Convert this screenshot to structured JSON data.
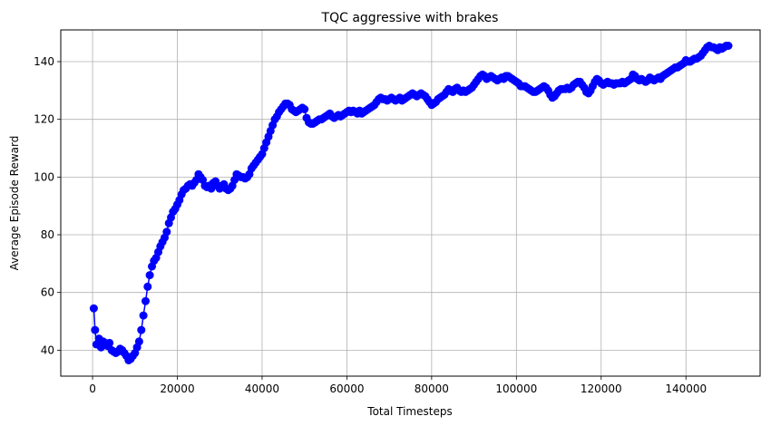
{
  "chart_data": {
    "type": "line",
    "title": "TQC aggressive with brakes",
    "xlabel": "Total Timesteps",
    "ylabel": "Average Episode Reward",
    "xlim": [
      -7500,
      157500
    ],
    "ylim": [
      31,
      151
    ],
    "xticks": [
      0,
      20000,
      40000,
      60000,
      80000,
      100000,
      120000,
      140000
    ],
    "yticks": [
      40,
      60,
      80,
      100,
      120,
      140
    ],
    "grid": true,
    "line_color": "#0000ff",
    "marker": "circle",
    "series": [
      {
        "name": "",
        "points": [
          [
            300,
            54.5
          ],
          [
            600,
            47
          ],
          [
            900,
            42
          ],
          [
            1500,
            44
          ],
          [
            2000,
            41
          ],
          [
            2500,
            43
          ],
          [
            3000,
            42.5
          ],
          [
            3500,
            41.5
          ],
          [
            4000,
            42.5
          ],
          [
            4500,
            40
          ],
          [
            5000,
            39.5
          ],
          [
            5500,
            39
          ],
          [
            6000,
            39.5
          ],
          [
            6500,
            40.5
          ],
          [
            7000,
            40
          ],
          [
            7500,
            39
          ],
          [
            8000,
            38
          ],
          [
            8500,
            36.5
          ],
          [
            9000,
            37
          ],
          [
            9500,
            38
          ],
          [
            10000,
            39
          ],
          [
            10500,
            41
          ],
          [
            11000,
            43
          ],
          [
            11500,
            47
          ],
          [
            12000,
            52
          ],
          [
            12500,
            57
          ],
          [
            13000,
            62
          ],
          [
            13500,
            66
          ],
          [
            14000,
            69
          ],
          [
            14500,
            71
          ],
          [
            15000,
            72
          ],
          [
            15500,
            74
          ],
          [
            16000,
            76
          ],
          [
            16500,
            77.5
          ],
          [
            17000,
            79
          ],
          [
            17500,
            81
          ],
          [
            18000,
            84
          ],
          [
            18500,
            86
          ],
          [
            19000,
            88
          ],
          [
            19500,
            89
          ],
          [
            20000,
            90.5
          ],
          [
            20500,
            92
          ],
          [
            21000,
            94
          ],
          [
            21500,
            95.5
          ],
          [
            22000,
            96
          ],
          [
            22500,
            97
          ],
          [
            23000,
            97.5
          ],
          [
            23500,
            97
          ],
          [
            24000,
            98
          ],
          [
            24500,
            99
          ],
          [
            25000,
            101
          ],
          [
            25500,
            100
          ],
          [
            26000,
            99
          ],
          [
            26500,
            97
          ],
          [
            27000,
            96.5
          ],
          [
            27500,
            97
          ],
          [
            28000,
            96
          ],
          [
            28500,
            98
          ],
          [
            29000,
            98.5
          ],
          [
            29500,
            97
          ],
          [
            30000,
            96
          ],
          [
            30500,
            97
          ],
          [
            31000,
            97.5
          ],
          [
            31500,
            96
          ],
          [
            32000,
            95.5
          ],
          [
            32500,
            96
          ],
          [
            33000,
            97
          ],
          [
            33500,
            99
          ],
          [
            34000,
            101
          ],
          [
            34500,
            100.5
          ],
          [
            35000,
            100
          ],
          [
            35500,
            100
          ],
          [
            36000,
            99.5
          ],
          [
            36500,
            100
          ],
          [
            37000,
            101
          ],
          [
            37500,
            103
          ],
          [
            38000,
            104
          ],
          [
            38500,
            105
          ],
          [
            39000,
            106
          ],
          [
            39500,
            107
          ],
          [
            40000,
            108
          ],
          [
            40500,
            110
          ],
          [
            41000,
            112
          ],
          [
            41500,
            114
          ],
          [
            42000,
            116
          ],
          [
            42500,
            118
          ],
          [
            43000,
            120
          ],
          [
            43500,
            121
          ],
          [
            44000,
            122.5
          ],
          [
            44500,
            123.5
          ],
          [
            45000,
            124.5
          ],
          [
            45500,
            125.5
          ],
          [
            46000,
            125.5
          ],
          [
            46500,
            125
          ],
          [
            47000,
            123.5
          ],
          [
            47500,
            123
          ],
          [
            48000,
            122.5
          ],
          [
            48500,
            123
          ],
          [
            49000,
            123.5
          ],
          [
            49500,
            124
          ],
          [
            50000,
            123.5
          ],
          [
            50500,
            120.5
          ],
          [
            51000,
            119
          ],
          [
            51500,
            118.5
          ],
          [
            52000,
            118.5
          ],
          [
            52500,
            119
          ],
          [
            53000,
            119.5
          ],
          [
            53500,
            120
          ],
          [
            54000,
            120
          ],
          [
            54500,
            120.5
          ],
          [
            55000,
            121
          ],
          [
            55500,
            121.5
          ],
          [
            56000,
            122
          ],
          [
            56500,
            121
          ],
          [
            57000,
            120.5
          ],
          [
            57500,
            121
          ],
          [
            58000,
            121.5
          ],
          [
            58500,
            121
          ],
          [
            59000,
            121.5
          ],
          [
            59500,
            122
          ],
          [
            60000,
            122.5
          ],
          [
            60500,
            123
          ],
          [
            61000,
            122.5
          ],
          [
            61500,
            123
          ],
          [
            62000,
            122.5
          ],
          [
            62500,
            122
          ],
          [
            63000,
            123
          ],
          [
            63500,
            122
          ],
          [
            64000,
            122.5
          ],
          [
            64500,
            123
          ],
          [
            65000,
            123.5
          ],
          [
            65500,
            124
          ],
          [
            66000,
            124.5
          ],
          [
            66500,
            125
          ],
          [
            67000,
            126
          ],
          [
            67500,
            127
          ],
          [
            68000,
            127.5
          ],
          [
            68500,
            127
          ],
          [
            69000,
            127
          ],
          [
            69500,
            126.5
          ],
          [
            70000,
            127
          ],
          [
            70500,
            127.5
          ],
          [
            71000,
            127
          ],
          [
            71500,
            126.5
          ],
          [
            72000,
            127
          ],
          [
            72500,
            127.5
          ],
          [
            73000,
            126.5
          ],
          [
            73500,
            127
          ],
          [
            74000,
            127.5
          ],
          [
            74500,
            128
          ],
          [
            75000,
            128.5
          ],
          [
            75500,
            129
          ],
          [
            76000,
            128.5
          ],
          [
            76500,
            128
          ],
          [
            77000,
            128.5
          ],
          [
            77500,
            129
          ],
          [
            78000,
            128.5
          ],
          [
            78500,
            128
          ],
          [
            79000,
            127
          ],
          [
            79500,
            126
          ],
          [
            80000,
            125
          ],
          [
            80500,
            125.5
          ],
          [
            81000,
            126
          ],
          [
            81500,
            127
          ],
          [
            82000,
            127.5
          ],
          [
            82500,
            128
          ],
          [
            83000,
            128.5
          ],
          [
            83500,
            129.5
          ],
          [
            84000,
            130.5
          ],
          [
            84500,
            130
          ],
          [
            85000,
            129.5
          ],
          [
            85500,
            130.5
          ],
          [
            86000,
            131
          ],
          [
            86500,
            130
          ],
          [
            87000,
            129.5
          ],
          [
            87500,
            130
          ],
          [
            88000,
            129.5
          ],
          [
            88500,
            130
          ],
          [
            89000,
            130.5
          ],
          [
            89500,
            131
          ],
          [
            90000,
            132
          ],
          [
            90500,
            133
          ],
          [
            91000,
            134
          ],
          [
            91500,
            135
          ],
          [
            92000,
            135.5
          ],
          [
            92500,
            135
          ],
          [
            93000,
            134
          ],
          [
            93500,
            134.5
          ],
          [
            94000,
            135
          ],
          [
            94500,
            134.5
          ],
          [
            95000,
            134
          ],
          [
            95500,
            133.5
          ],
          [
            96000,
            134
          ],
          [
            96500,
            134.5
          ],
          [
            97000,
            134
          ],
          [
            97500,
            135
          ],
          [
            98000,
            135
          ],
          [
            98500,
            134.5
          ],
          [
            99000,
            134
          ],
          [
            99500,
            133.5
          ],
          [
            100000,
            133
          ],
          [
            100500,
            132.5
          ],
          [
            101000,
            131.5
          ],
          [
            101500,
            131.5
          ],
          [
            102000,
            131.5
          ],
          [
            102500,
            131
          ],
          [
            103000,
            130.5
          ],
          [
            103500,
            130
          ],
          [
            104000,
            129.5
          ],
          [
            104500,
            129.5
          ],
          [
            105000,
            130
          ],
          [
            105500,
            130.5
          ],
          [
            106000,
            131
          ],
          [
            106500,
            131.5
          ],
          [
            107000,
            131
          ],
          [
            107500,
            130
          ],
          [
            108000,
            128.5
          ],
          [
            108500,
            127.5
          ],
          [
            109000,
            128
          ],
          [
            109500,
            129
          ],
          [
            110000,
            130
          ],
          [
            110500,
            130.5
          ],
          [
            111000,
            130.5
          ],
          [
            111500,
            130.5
          ],
          [
            112000,
            131
          ],
          [
            112500,
            130.5
          ],
          [
            113000,
            131
          ],
          [
            113500,
            132
          ],
          [
            114000,
            132.5
          ],
          [
            114500,
            133
          ],
          [
            115000,
            133
          ],
          [
            115500,
            132
          ],
          [
            116000,
            131
          ],
          [
            116500,
            129.5
          ],
          [
            117000,
            129
          ],
          [
            117500,
            130
          ],
          [
            118000,
            131.5
          ],
          [
            118500,
            133
          ],
          [
            119000,
            134
          ],
          [
            119500,
            133.5
          ],
          [
            120000,
            132.5
          ],
          [
            120500,
            132
          ],
          [
            121000,
            132.5
          ],
          [
            121500,
            133
          ],
          [
            122000,
            132.5
          ],
          [
            122500,
            132.5
          ],
          [
            123000,
            132
          ],
          [
            123500,
            132.5
          ],
          [
            124000,
            132.5
          ],
          [
            124500,
            132.5
          ],
          [
            125000,
            133
          ],
          [
            125500,
            132.5
          ],
          [
            126000,
            133
          ],
          [
            126500,
            133.5
          ],
          [
            127000,
            134
          ],
          [
            127500,
            135.5
          ],
          [
            128000,
            135
          ],
          [
            128500,
            134
          ],
          [
            129000,
            133.5
          ],
          [
            129500,
            134
          ],
          [
            130000,
            133.5
          ],
          [
            130500,
            133
          ],
          [
            131000,
            133.5
          ],
          [
            131500,
            134.5
          ],
          [
            132000,
            134
          ],
          [
            132500,
            133.5
          ],
          [
            133000,
            134
          ],
          [
            133500,
            134.5
          ],
          [
            134000,
            134
          ],
          [
            134500,
            135
          ],
          [
            135000,
            135.5
          ],
          [
            135500,
            136
          ],
          [
            136000,
            136.5
          ],
          [
            136500,
            137
          ],
          [
            137000,
            137.5
          ],
          [
            137500,
            138
          ],
          [
            138000,
            138
          ],
          [
            138500,
            138.5
          ],
          [
            139000,
            139
          ],
          [
            139500,
            139.5
          ],
          [
            140000,
            140.5
          ],
          [
            140500,
            140
          ],
          [
            141000,
            140
          ],
          [
            141500,
            140.5
          ],
          [
            142000,
            141
          ],
          [
            142500,
            141
          ],
          [
            143000,
            141.5
          ],
          [
            143500,
            142
          ],
          [
            144000,
            143
          ],
          [
            144500,
            144
          ],
          [
            145000,
            145
          ],
          [
            145500,
            145.5
          ],
          [
            146000,
            145
          ],
          [
            146500,
            145
          ],
          [
            147000,
            144.5
          ],
          [
            147500,
            144
          ],
          [
            148000,
            145
          ],
          [
            148500,
            144.5
          ],
          [
            149000,
            145
          ],
          [
            149500,
            145.5
          ],
          [
            150000,
            145.5
          ]
        ]
      }
    ]
  }
}
